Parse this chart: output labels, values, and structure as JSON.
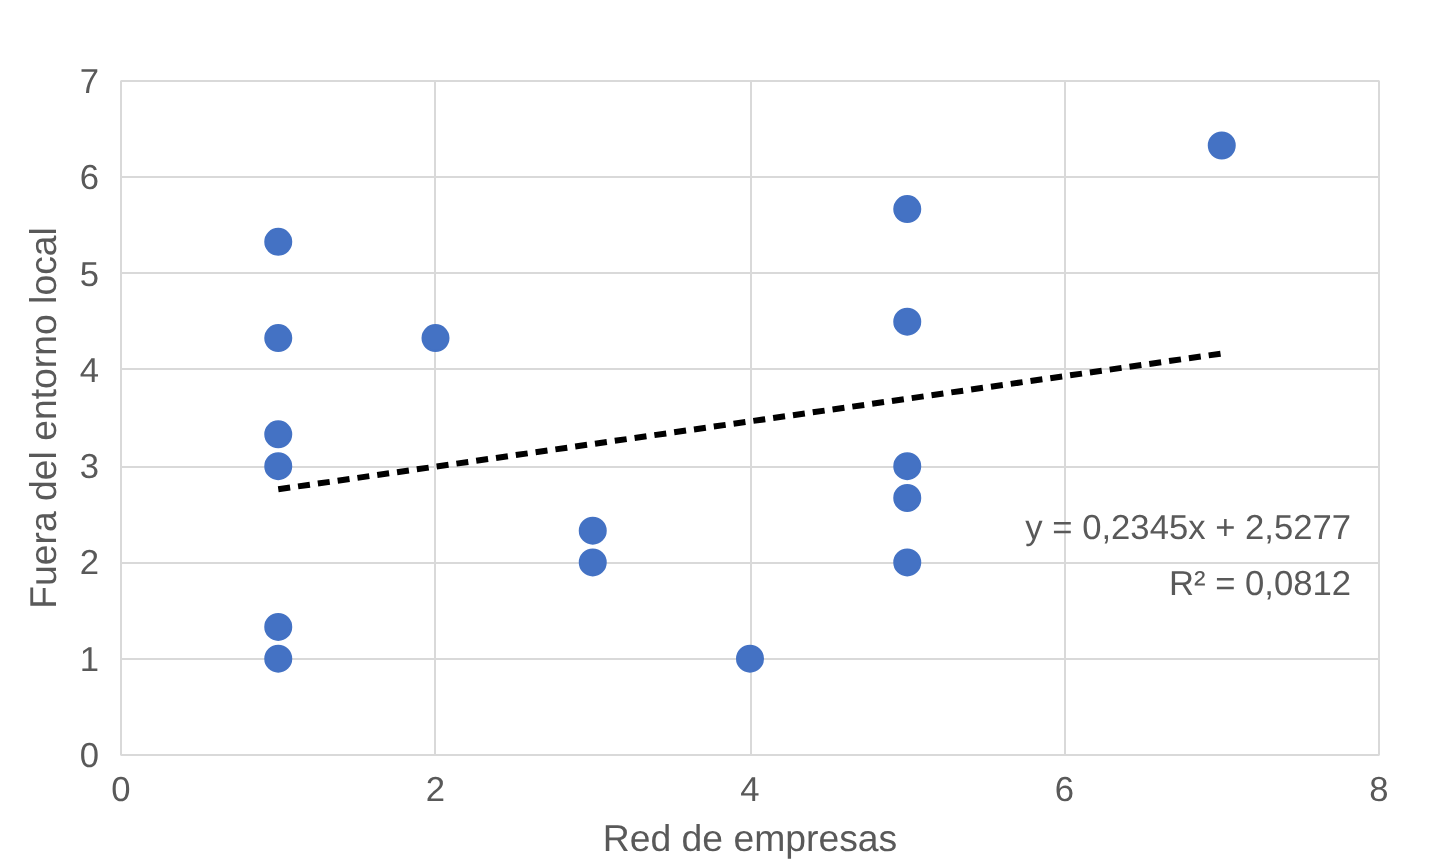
{
  "chart_data": {
    "type": "scatter",
    "xlabel": "Red de empresas",
    "ylabel": "Fuera del entorno local",
    "xlim": [
      0,
      8
    ],
    "xticks": [
      0,
      2,
      4,
      6,
      8
    ],
    "ylim": [
      0,
      7
    ],
    "yticks": [
      0,
      1,
      2,
      3,
      4,
      5,
      6,
      7
    ],
    "grid": true,
    "marker": "circle",
    "series": [
      {
        "color": "#4472c4",
        "x": [
          1,
          1,
          1,
          1,
          1,
          1,
          2,
          3,
          3,
          4,
          5,
          5,
          5,
          5,
          5,
          7
        ],
        "values": [
          5.33,
          4.33,
          3.33,
          3,
          1.33,
          1,
          4.33,
          2.33,
          2,
          1,
          5.67,
          4.5,
          3,
          2.67,
          2,
          6.33
        ]
      },
      {
        "type": "line",
        "color": "#000000",
        "line_style": "dashed",
        "marker": "none",
        "x": [
          1,
          7
        ],
        "values": [
          2.76,
          4.17
        ]
      }
    ],
    "annotations": [
      "y = 0,2345x + 2,5277",
      "R² = 0,0812"
    ]
  }
}
